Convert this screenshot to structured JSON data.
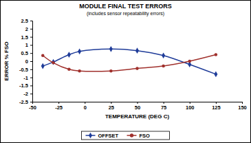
{
  "chart_data": {
    "type": "line",
    "title": "MODULE FINAL TEST ERRORS",
    "subtitle": "(includes sensor repeatability errors)",
    "x_label": "TEMPERATURE (DEG C)",
    "y_label": "ERROR % FSO",
    "x": [
      -40,
      -30,
      -15,
      -5,
      25,
      50,
      75,
      100,
      125
    ],
    "series": [
      {
        "name": "OFFSET",
        "color": "#1f3c99",
        "marker": "diamond",
        "line_style": "smooth",
        "values": [
          -0.3,
          -0.05,
          0.4,
          0.6,
          0.75,
          0.65,
          0.35,
          -0.2,
          -0.8
        ]
      },
      {
        "name": "FSO",
        "color": "#a0302c",
        "marker": "circle",
        "line_style": "smooth",
        "values": [
          0.35,
          -0.1,
          -0.5,
          -0.6,
          -0.6,
          -0.45,
          -0.3,
          0.0,
          0.4
        ]
      }
    ],
    "xlim": [
      -50,
      150
    ],
    "xticks": [
      -50,
      -25,
      0,
      25,
      50,
      75,
      100,
      125,
      150
    ],
    "ylim": [
      -2.5,
      2.5
    ],
    "yticks": [
      -2.5,
      -2,
      -1.5,
      -1,
      -0.5,
      0,
      0.5,
      1,
      1.5,
      2,
      2.5
    ],
    "grid": false,
    "legend": "bottom"
  }
}
